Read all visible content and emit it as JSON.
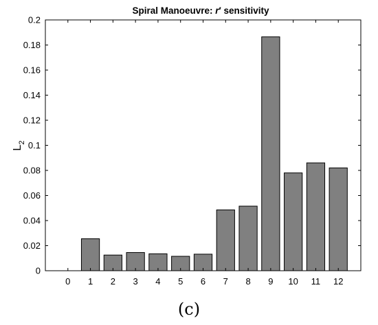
{
  "chart_data": {
    "type": "bar",
    "title_main": "Spiral Manoeuvre: ",
    "title_symbol": "r",
    "title_prime": "′",
    "title_rest": " sensitivity",
    "ylabel_main": "L",
    "ylabel_sub": "2",
    "xlabel": "",
    "categories": [
      "0",
      "1",
      "2",
      "3",
      "4",
      "5",
      "6",
      "7",
      "8",
      "9",
      "10",
      "11",
      "12"
    ],
    "values": [
      0,
      0.0255,
      0.0125,
      0.0145,
      0.0135,
      0.0115,
      0.0132,
      0.0485,
      0.0515,
      0.1865,
      0.078,
      0.086,
      0.082
    ],
    "ylim": [
      0,
      0.2
    ],
    "yticks": [
      0,
      0.02,
      0.04,
      0.06,
      0.08,
      0.1,
      0.12,
      0.14,
      0.16,
      0.18,
      0.2
    ],
    "ytick_labels": [
      "0",
      "0.02",
      "0.04",
      "0.06",
      "0.08",
      "0.1",
      "0.12",
      "0.14",
      "0.16",
      "0.18",
      "0.2"
    ],
    "bar_color": "#808080",
    "grid": false,
    "legend": "none"
  },
  "caption": "(c)"
}
